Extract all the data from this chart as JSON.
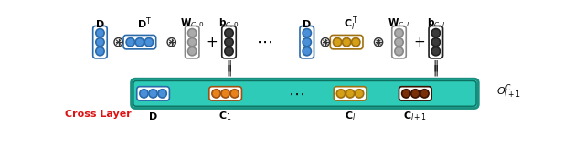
{
  "fig_width": 6.4,
  "fig_height": 1.73,
  "dpi": 100,
  "bg_color": "#ffffff",
  "teal_color": "#2ecbb8",
  "blue_color": "#4a90d9",
  "orange_color": "#e8821a",
  "yellow_color": "#d4a017",
  "brown_color": "#7a2e08",
  "gray_light": "#aaaaaa",
  "gray_dark": "#3a3a3a",
  "red_color": "#dd1111",
  "white": "#ffffff"
}
